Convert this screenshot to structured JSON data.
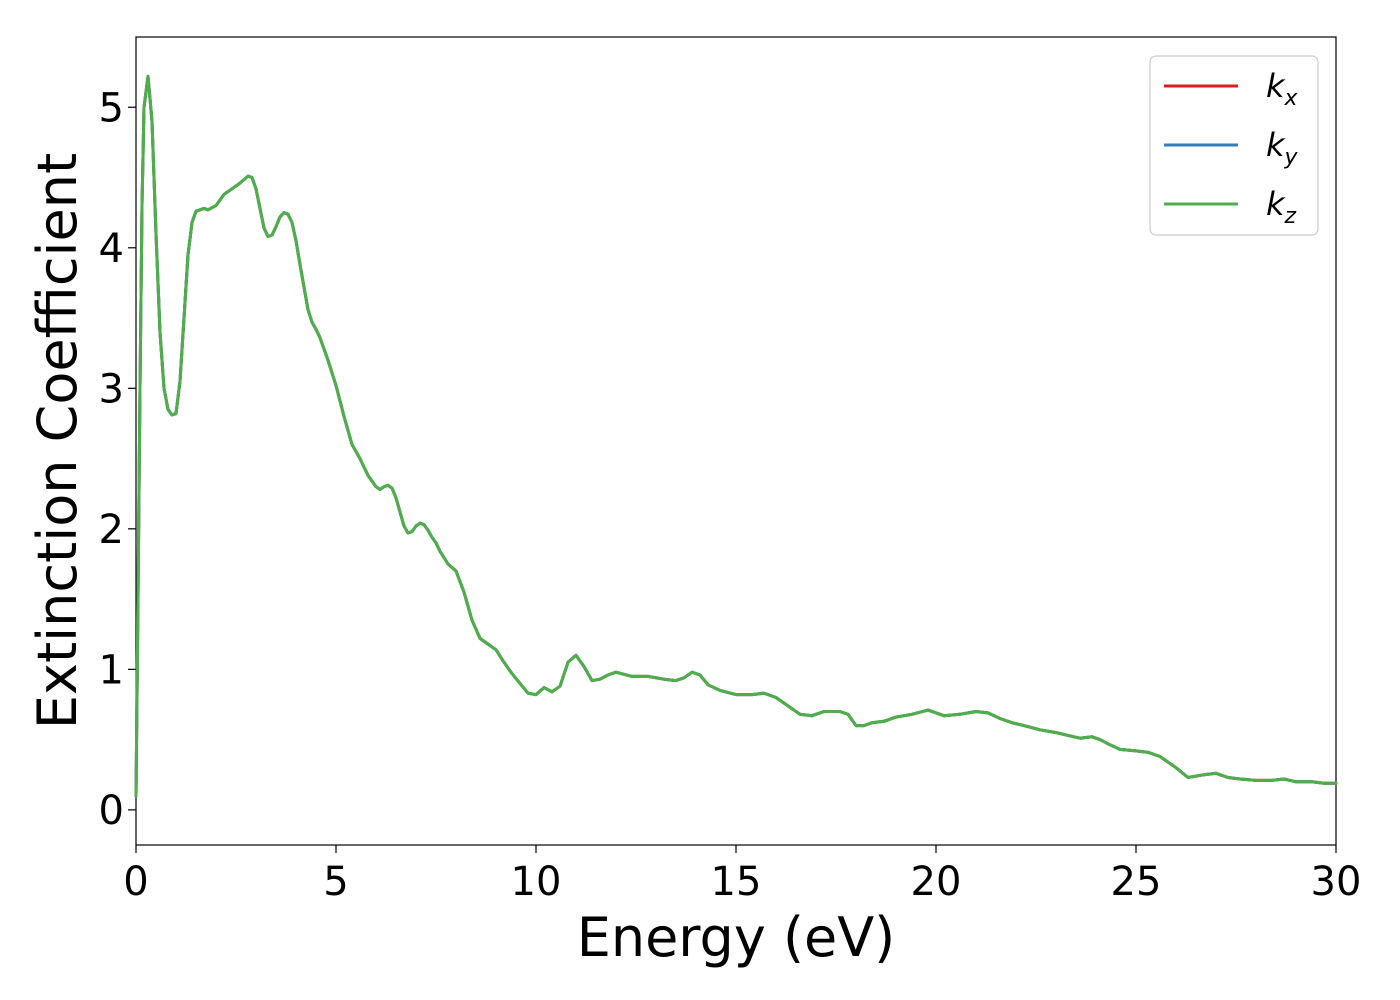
{
  "chart_data": {
    "type": "line",
    "xlabel": "Energy (eV)",
    "ylabel": "Extinction Coefficient",
    "xlim": [
      0,
      30
    ],
    "ylim": [
      -0.25,
      5.5
    ],
    "xticks": [
      "0",
      "5",
      "10",
      "15",
      "20",
      "25",
      "30"
    ],
    "yticks": [
      "0",
      "1",
      "2",
      "3",
      "4",
      "5"
    ],
    "grid": false,
    "legend_position": "top-right",
    "series": [
      {
        "name": "k",
        "subscript": "x",
        "color": "#e41a1c",
        "values_same_as": "kz"
      },
      {
        "name": "k",
        "subscript": "y",
        "color": "#377eb8",
        "values_same_as": "kz"
      },
      {
        "name": "k",
        "subscript": "z",
        "color": "#4daf4a",
        "x": [
          0,
          0.05,
          0.1,
          0.15,
          0.2,
          0.3,
          0.4,
          0.5,
          0.6,
          0.7,
          0.8,
          0.9,
          1.0,
          1.1,
          1.2,
          1.3,
          1.4,
          1.5,
          1.6,
          1.7,
          1.8,
          2.0,
          2.2,
          2.4,
          2.6,
          2.8,
          2.9,
          3.0,
          3.1,
          3.2,
          3.3,
          3.4,
          3.5,
          3.6,
          3.7,
          3.8,
          3.9,
          4.0,
          4.1,
          4.2,
          4.3,
          4.4,
          4.5,
          4.6,
          4.8,
          5.0,
          5.2,
          5.4,
          5.6,
          5.8,
          6.0,
          6.1,
          6.2,
          6.3,
          6.4,
          6.5,
          6.6,
          6.7,
          6.8,
          6.9,
          7.0,
          7.1,
          7.2,
          7.3,
          7.4,
          7.5,
          7.6,
          7.8,
          8.0,
          8.2,
          8.4,
          8.6,
          8.8,
          9.0,
          9.2,
          9.4,
          9.6,
          9.8,
          10.0,
          10.2,
          10.4,
          10.6,
          10.8,
          11.0,
          11.2,
          11.4,
          11.6,
          11.8,
          12.0,
          12.4,
          12.8,
          13.2,
          13.5,
          13.7,
          13.9,
          14.1,
          14.3,
          14.6,
          15.0,
          15.4,
          15.7,
          16.0,
          16.3,
          16.6,
          16.9,
          17.2,
          17.6,
          17.8,
          18.0,
          18.2,
          18.4,
          18.7,
          19.0,
          19.4,
          19.8,
          20.2,
          20.6,
          21.0,
          21.3,
          21.6,
          21.9,
          22.2,
          22.6,
          23.0,
          23.3,
          23.6,
          23.9,
          24.1,
          24.3,
          24.6,
          25.0,
          25.3,
          25.6,
          26.0,
          26.3,
          26.7,
          27.0,
          27.3,
          27.6,
          28.0,
          28.4,
          28.7,
          29.0,
          29.4,
          29.7,
          30.0
        ],
        "values": [
          0.1,
          1.5,
          3.0,
          4.3,
          5.0,
          5.22,
          4.9,
          4.1,
          3.4,
          3.0,
          2.85,
          2.81,
          2.82,
          3.05,
          3.5,
          3.95,
          4.18,
          4.26,
          4.27,
          4.28,
          4.27,
          4.3,
          4.38,
          4.42,
          4.46,
          4.51,
          4.5,
          4.42,
          4.28,
          4.14,
          4.08,
          4.09,
          4.15,
          4.22,
          4.25,
          4.24,
          4.18,
          4.05,
          3.88,
          3.72,
          3.56,
          3.47,
          3.42,
          3.36,
          3.2,
          3.02,
          2.8,
          2.6,
          2.5,
          2.38,
          2.3,
          2.28,
          2.3,
          2.31,
          2.29,
          2.22,
          2.12,
          2.02,
          1.97,
          1.98,
          2.02,
          2.04,
          2.03,
          1.99,
          1.94,
          1.9,
          1.84,
          1.75,
          1.7,
          1.55,
          1.35,
          1.22,
          1.18,
          1.14,
          1.05,
          0.97,
          0.9,
          0.83,
          0.82,
          0.87,
          0.84,
          0.88,
          1.05,
          1.1,
          1.02,
          0.92,
          0.93,
          0.96,
          0.98,
          0.95,
          0.95,
          0.93,
          0.92,
          0.94,
          0.98,
          0.96,
          0.89,
          0.85,
          0.82,
          0.82,
          0.83,
          0.8,
          0.74,
          0.68,
          0.67,
          0.7,
          0.7,
          0.68,
          0.6,
          0.6,
          0.62,
          0.63,
          0.66,
          0.68,
          0.71,
          0.67,
          0.68,
          0.7,
          0.69,
          0.65,
          0.62,
          0.6,
          0.57,
          0.55,
          0.53,
          0.51,
          0.52,
          0.5,
          0.47,
          0.43,
          0.42,
          0.41,
          0.38,
          0.3,
          0.23,
          0.25,
          0.26,
          0.23,
          0.22,
          0.21,
          0.21,
          0.22,
          0.2,
          0.2,
          0.19,
          0.19
        ]
      }
    ]
  }
}
